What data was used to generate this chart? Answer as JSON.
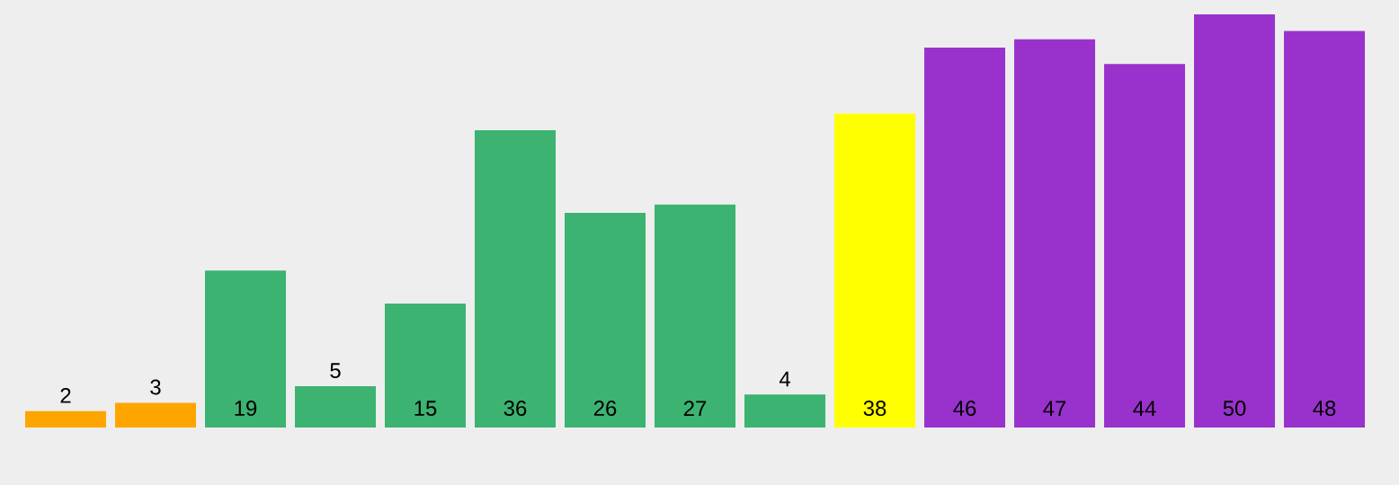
{
  "chart_data": {
    "type": "bar",
    "categories": [
      null,
      null,
      null,
      null,
      null,
      null,
      null,
      null,
      null,
      null,
      null,
      null,
      null,
      null,
      null
    ],
    "values": [
      2,
      3,
      19,
      5,
      15,
      36,
      26,
      27,
      4,
      38,
      46,
      47,
      44,
      50,
      48
    ],
    "colors": [
      "#ffa500",
      "#ffa500",
      "#3cb371",
      "#3cb371",
      "#3cb371",
      "#3cb371",
      "#3cb371",
      "#3cb371",
      "#3cb371",
      "#ffff00",
      "#9932cc",
      "#9932cc",
      "#9932cc",
      "#9932cc",
      "#9932cc"
    ],
    "data_labels": true
  }
}
